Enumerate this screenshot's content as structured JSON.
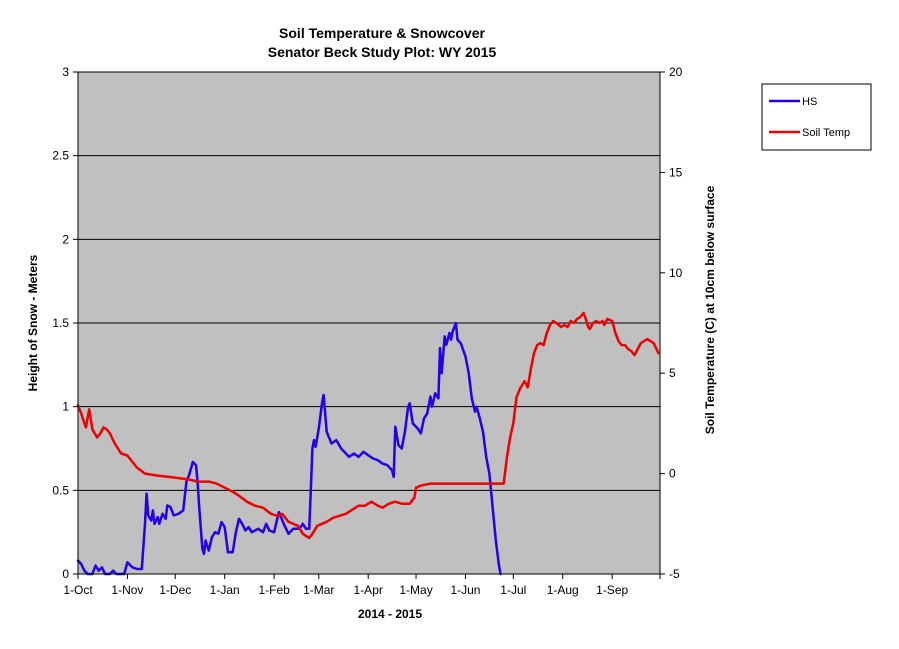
{
  "chart_data": {
    "type": "line",
    "title": "Soil Temperature & Snowcover",
    "subtitle": "Senator Beck Study Plot: WY 2015",
    "xlabel": "2014 - 2015",
    "ylabel_left": "Height of Snow - Meters",
    "ylabel_right": "Soil Temperature (C) at 10cm below surface",
    "x_unit": "date",
    "x_range": [
      "2014-10-01",
      "2015-09-30"
    ],
    "x_ticks": [
      {
        "date": "2014-10-01",
        "label": "1-Oct"
      },
      {
        "date": "2014-11-01",
        "label": "1-Nov"
      },
      {
        "date": "2014-12-01",
        "label": "1-Dec"
      },
      {
        "date": "2015-01-01",
        "label": "1-Jan"
      },
      {
        "date": "2015-02-01",
        "label": "1-Feb"
      },
      {
        "date": "2015-03-01",
        "label": "1-Mar"
      },
      {
        "date": "2015-04-01",
        "label": "1-Apr"
      },
      {
        "date": "2015-05-01",
        "label": "1-May"
      },
      {
        "date": "2015-06-01",
        "label": "1-Jun"
      },
      {
        "date": "2015-07-01",
        "label": "1-Jul"
      },
      {
        "date": "2015-08-01",
        "label": "1-Aug"
      },
      {
        "date": "2015-09-01",
        "label": "1-Sep"
      }
    ],
    "y_left": {
      "min": 0,
      "max": 3,
      "ticks": [
        "0",
        "0.5",
        "1",
        "1.5",
        "2",
        "2.5",
        "3"
      ]
    },
    "y_right": {
      "min": -5,
      "max": 20,
      "ticks": [
        "-5",
        "0",
        "5",
        "10",
        "15",
        "20"
      ]
    },
    "grid": "horizontal",
    "plot_background": "#c0c0c0",
    "legend": {
      "placement": "right-top",
      "entries": [
        "HS",
        "Soil Temp"
      ]
    },
    "series": [
      {
        "name": "HS",
        "axis": "left",
        "color": "#2200ee",
        "points": [
          [
            "2014-10-01",
            0.08
          ],
          [
            "2014-10-03",
            0.06
          ],
          [
            "2014-10-05",
            0.02
          ],
          [
            "2014-10-07",
            0.0
          ],
          [
            "2014-10-10",
            0.0
          ],
          [
            "2014-10-12",
            0.05
          ],
          [
            "2014-10-14",
            0.02
          ],
          [
            "2014-10-16",
            0.04
          ],
          [
            "2014-10-18",
            0.0
          ],
          [
            "2014-10-21",
            0.0
          ],
          [
            "2014-10-23",
            0.02
          ],
          [
            "2014-10-25",
            0.0
          ],
          [
            "2014-10-30",
            0.0
          ],
          [
            "2014-11-01",
            0.07
          ],
          [
            "2014-11-04",
            0.04
          ],
          [
            "2014-11-07",
            0.03
          ],
          [
            "2014-11-10",
            0.03
          ],
          [
            "2014-11-12",
            0.3
          ],
          [
            "2014-11-13",
            0.48
          ],
          [
            "2014-11-14",
            0.35
          ],
          [
            "2014-11-16",
            0.32
          ],
          [
            "2014-11-17",
            0.38
          ],
          [
            "2014-11-18",
            0.3
          ],
          [
            "2014-11-20",
            0.34
          ],
          [
            "2014-11-21",
            0.3
          ],
          [
            "2014-11-23",
            0.36
          ],
          [
            "2014-11-25",
            0.33
          ],
          [
            "2014-11-26",
            0.41
          ],
          [
            "2014-11-28",
            0.4
          ],
          [
            "2014-11-30",
            0.35
          ],
          [
            "2014-12-03",
            0.36
          ],
          [
            "2014-12-06",
            0.38
          ],
          [
            "2014-12-08",
            0.55
          ],
          [
            "2014-12-10",
            0.6
          ],
          [
            "2014-12-12",
            0.67
          ],
          [
            "2014-12-14",
            0.65
          ],
          [
            "2014-12-15",
            0.55
          ],
          [
            "2014-12-16",
            0.4
          ],
          [
            "2014-12-18",
            0.15
          ],
          [
            "2014-12-19",
            0.12
          ],
          [
            "2014-12-20",
            0.2
          ],
          [
            "2014-12-22",
            0.14
          ],
          [
            "2014-12-24",
            0.22
          ],
          [
            "2014-12-26",
            0.25
          ],
          [
            "2014-12-28",
            0.24
          ],
          [
            "2014-12-30",
            0.31
          ],
          [
            "2015-01-01",
            0.28
          ],
          [
            "2015-01-03",
            0.13
          ],
          [
            "2015-01-06",
            0.13
          ],
          [
            "2015-01-08",
            0.25
          ],
          [
            "2015-01-10",
            0.33
          ],
          [
            "2015-01-12",
            0.3
          ],
          [
            "2015-01-14",
            0.26
          ],
          [
            "2015-01-16",
            0.28
          ],
          [
            "2015-01-18",
            0.25
          ],
          [
            "2015-01-20",
            0.26
          ],
          [
            "2015-01-22",
            0.27
          ],
          [
            "2015-01-25",
            0.25
          ],
          [
            "2015-01-27",
            0.3
          ],
          [
            "2015-01-29",
            0.26
          ],
          [
            "2015-02-01",
            0.25
          ],
          [
            "2015-02-04",
            0.37
          ],
          [
            "2015-02-07",
            0.3
          ],
          [
            "2015-02-10",
            0.24
          ],
          [
            "2015-02-13",
            0.27
          ],
          [
            "2015-02-17",
            0.27
          ],
          [
            "2015-02-19",
            0.3
          ],
          [
            "2015-02-21",
            0.27
          ],
          [
            "2015-02-23",
            0.27
          ],
          [
            "2015-02-24",
            0.5
          ],
          [
            "2015-02-25",
            0.75
          ],
          [
            "2015-02-26",
            0.8
          ],
          [
            "2015-02-27",
            0.76
          ],
          [
            "2015-03-01",
            0.87
          ],
          [
            "2015-03-03",
            1.02
          ],
          [
            "2015-03-04",
            1.07
          ],
          [
            "2015-03-06",
            0.85
          ],
          [
            "2015-03-09",
            0.78
          ],
          [
            "2015-03-12",
            0.8
          ],
          [
            "2015-03-15",
            0.75
          ],
          [
            "2015-03-18",
            0.72
          ],
          [
            "2015-03-20",
            0.7
          ],
          [
            "2015-03-23",
            0.72
          ],
          [
            "2015-03-26",
            0.7
          ],
          [
            "2015-03-29",
            0.73
          ],
          [
            "2015-04-01",
            0.71
          ],
          [
            "2015-04-04",
            0.69
          ],
          [
            "2015-04-07",
            0.68
          ],
          [
            "2015-04-10",
            0.66
          ],
          [
            "2015-04-13",
            0.65
          ],
          [
            "2015-04-16",
            0.62
          ],
          [
            "2015-04-17",
            0.58
          ],
          [
            "2015-04-18",
            0.88
          ],
          [
            "2015-04-20",
            0.77
          ],
          [
            "2015-04-22",
            0.75
          ],
          [
            "2015-04-24",
            0.85
          ],
          [
            "2015-04-26",
            1.0
          ],
          [
            "2015-04-27",
            1.02
          ],
          [
            "2015-04-29",
            0.9
          ],
          [
            "2015-05-02",
            0.87
          ],
          [
            "2015-05-04",
            0.84
          ],
          [
            "2015-05-06",
            0.93
          ],
          [
            "2015-05-08",
            0.96
          ],
          [
            "2015-05-10",
            1.06
          ],
          [
            "2015-05-11",
            1.0
          ],
          [
            "2015-05-13",
            1.08
          ],
          [
            "2015-05-15",
            1.05
          ],
          [
            "2015-05-16",
            1.35
          ],
          [
            "2015-05-17",
            1.2
          ],
          [
            "2015-05-19",
            1.42
          ],
          [
            "2015-05-20",
            1.37
          ],
          [
            "2015-05-22",
            1.44
          ],
          [
            "2015-05-23",
            1.4
          ],
          [
            "2015-05-24",
            1.45
          ],
          [
            "2015-05-26",
            1.5
          ],
          [
            "2015-05-27",
            1.4
          ],
          [
            "2015-05-29",
            1.38
          ],
          [
            "2015-06-01",
            1.3
          ],
          [
            "2015-06-03",
            1.2
          ],
          [
            "2015-06-05",
            1.05
          ],
          [
            "2015-06-07",
            0.97
          ],
          [
            "2015-06-08",
            1.0
          ],
          [
            "2015-06-10",
            0.93
          ],
          [
            "2015-06-12",
            0.85
          ],
          [
            "2015-06-14",
            0.7
          ],
          [
            "2015-06-16",
            0.6
          ],
          [
            "2015-06-18",
            0.4
          ],
          [
            "2015-06-20",
            0.2
          ],
          [
            "2015-06-22",
            0.05
          ],
          [
            "2015-06-23",
            0.0
          ]
        ]
      },
      {
        "name": "Soil Temp",
        "axis": "right",
        "color": "#ee0000",
        "points": [
          [
            "2014-10-01",
            3.4
          ],
          [
            "2014-10-03",
            3.0
          ],
          [
            "2014-10-05",
            2.5
          ],
          [
            "2014-10-06",
            2.3
          ],
          [
            "2014-10-08",
            3.2
          ],
          [
            "2014-10-10",
            2.2
          ],
          [
            "2014-10-13",
            1.8
          ],
          [
            "2014-10-15",
            2.0
          ],
          [
            "2014-10-17",
            2.3
          ],
          [
            "2014-10-19",
            2.2
          ],
          [
            "2014-10-21",
            2.0
          ],
          [
            "2014-10-24",
            1.5
          ],
          [
            "2014-10-28",
            1.0
          ],
          [
            "2014-11-01",
            0.9
          ],
          [
            "2014-11-04",
            0.6
          ],
          [
            "2014-11-07",
            0.3
          ],
          [
            "2014-11-12",
            0.0
          ],
          [
            "2014-11-20",
            -0.1
          ],
          [
            "2014-12-01",
            -0.2
          ],
          [
            "2014-12-10",
            -0.3
          ],
          [
            "2014-12-15",
            -0.4
          ],
          [
            "2014-12-22",
            -0.4
          ],
          [
            "2014-12-27",
            -0.5
          ],
          [
            "2015-01-01",
            -0.7
          ],
          [
            "2015-01-06",
            -0.9
          ],
          [
            "2015-01-10",
            -1.1
          ],
          [
            "2015-01-15",
            -1.4
          ],
          [
            "2015-01-20",
            -1.6
          ],
          [
            "2015-01-25",
            -1.7
          ],
          [
            "2015-01-30",
            -2.0
          ],
          [
            "2015-02-03",
            -2.1
          ],
          [
            "2015-02-06",
            -2.0
          ],
          [
            "2015-02-08",
            -2.2
          ],
          [
            "2015-02-10",
            -2.4
          ],
          [
            "2015-02-13",
            -2.5
          ],
          [
            "2015-02-16",
            -2.6
          ],
          [
            "2015-02-19",
            -3.0
          ],
          [
            "2015-02-23",
            -3.2
          ],
          [
            "2015-02-25",
            -3.0
          ],
          [
            "2015-02-28",
            -2.6
          ],
          [
            "2015-03-03",
            -2.5
          ],
          [
            "2015-03-06",
            -2.4
          ],
          [
            "2015-03-10",
            -2.2
          ],
          [
            "2015-03-14",
            -2.1
          ],
          [
            "2015-03-18",
            -2.0
          ],
          [
            "2015-03-22",
            -1.8
          ],
          [
            "2015-03-26",
            -1.6
          ],
          [
            "2015-03-30",
            -1.6
          ],
          [
            "2015-04-03",
            -1.4
          ],
          [
            "2015-04-07",
            -1.6
          ],
          [
            "2015-04-10",
            -1.7
          ],
          [
            "2015-04-14",
            -1.5
          ],
          [
            "2015-04-18",
            -1.4
          ],
          [
            "2015-04-22",
            -1.5
          ],
          [
            "2015-04-27",
            -1.5
          ],
          [
            "2015-04-30",
            -1.2
          ],
          [
            "2015-05-01",
            -0.7
          ],
          [
            "2015-05-04",
            -0.6
          ],
          [
            "2015-05-10",
            -0.5
          ],
          [
            "2015-05-20",
            -0.5
          ],
          [
            "2015-05-31",
            -0.5
          ],
          [
            "2015-06-10",
            -0.5
          ],
          [
            "2015-06-20",
            -0.5
          ],
          [
            "2015-06-25",
            -0.5
          ],
          [
            "2015-06-27",
            0.8
          ],
          [
            "2015-06-29",
            1.8
          ],
          [
            "2015-07-01",
            2.5
          ],
          [
            "2015-07-03",
            3.8
          ],
          [
            "2015-07-05",
            4.2
          ],
          [
            "2015-07-08",
            4.6
          ],
          [
            "2015-07-10",
            4.3
          ],
          [
            "2015-07-12",
            5.2
          ],
          [
            "2015-07-14",
            6.0
          ],
          [
            "2015-07-16",
            6.4
          ],
          [
            "2015-07-18",
            6.5
          ],
          [
            "2015-07-20",
            6.4
          ],
          [
            "2015-07-22",
            7.0
          ],
          [
            "2015-07-24",
            7.4
          ],
          [
            "2015-07-26",
            7.6
          ],
          [
            "2015-07-28",
            7.5
          ],
          [
            "2015-07-31",
            7.3
          ],
          [
            "2015-08-02",
            7.4
          ],
          [
            "2015-08-04",
            7.3
          ],
          [
            "2015-08-06",
            7.6
          ],
          [
            "2015-08-08",
            7.5
          ],
          [
            "2015-08-10",
            7.7
          ],
          [
            "2015-08-12",
            7.8
          ],
          [
            "2015-08-14",
            8.0
          ],
          [
            "2015-08-15",
            7.8
          ],
          [
            "2015-08-17",
            7.3
          ],
          [
            "2015-08-18",
            7.2
          ],
          [
            "2015-08-20",
            7.5
          ],
          [
            "2015-08-22",
            7.6
          ],
          [
            "2015-08-24",
            7.5
          ],
          [
            "2015-08-26",
            7.6
          ],
          [
            "2015-08-27",
            7.4
          ],
          [
            "2015-08-29",
            7.7
          ],
          [
            "2015-09-01",
            7.6
          ],
          [
            "2015-09-03",
            7.0
          ],
          [
            "2015-09-05",
            6.6
          ],
          [
            "2015-09-07",
            6.4
          ],
          [
            "2015-09-09",
            6.4
          ],
          [
            "2015-09-11",
            6.2
          ],
          [
            "2015-09-13",
            6.1
          ],
          [
            "2015-09-15",
            5.9
          ],
          [
            "2015-09-17",
            6.2
          ],
          [
            "2015-09-19",
            6.5
          ],
          [
            "2015-09-21",
            6.6
          ],
          [
            "2015-09-23",
            6.7
          ],
          [
            "2015-09-25",
            6.6
          ],
          [
            "2015-09-27",
            6.5
          ],
          [
            "2015-09-30",
            6.0
          ]
        ]
      }
    ]
  }
}
